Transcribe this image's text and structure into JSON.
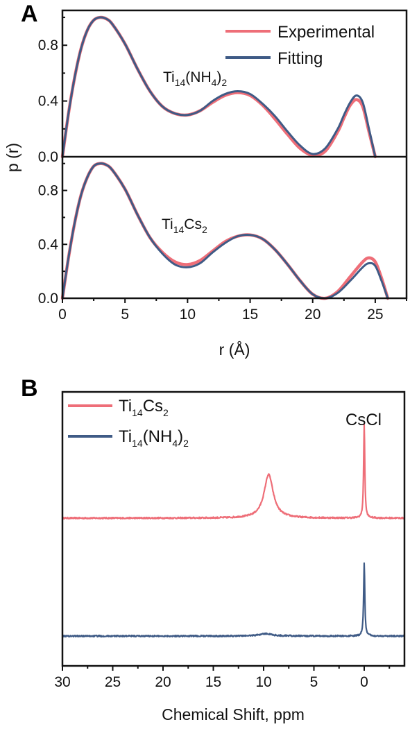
{
  "colors": {
    "experimental": "#ee6e78",
    "fitting": "#3f5b86",
    "axis": "#111111"
  },
  "chart_data": [
    {
      "panel": "A",
      "type": "line",
      "xlabel": "r (Å)",
      "ylabel": "p (r)",
      "xlim": [
        0,
        27.5
      ],
      "ylim": [
        0,
        1.05
      ],
      "xticks": [
        "0",
        "5",
        "10",
        "15",
        "20",
        "25"
      ],
      "yticks": [
        "0.0",
        "0.4",
        "0.8"
      ],
      "legend": {
        "placement": "top-right",
        "entries": [
          "Experimental",
          "Fitting"
        ]
      },
      "subplots": [
        {
          "annotation": {
            "base": "Ti",
            "sub1": "14",
            "mid": "(NH",
            "sub2": "4",
            "end": ")",
            "sub3": "2"
          },
          "x": [
            0,
            0.5,
            1,
            1.5,
            2,
            2.5,
            3,
            3.5,
            4,
            5,
            6,
            7,
            8,
            9,
            10,
            11,
            12,
            13,
            14,
            15,
            16,
            17,
            18,
            19,
            20,
            21,
            22,
            22.5,
            23,
            23.5,
            24,
            24.5,
            25
          ],
          "series": [
            {
              "name": "Experimental",
              "values": [
                0,
                0.32,
                0.58,
                0.78,
                0.91,
                0.98,
                1.0,
                0.99,
                0.95,
                0.81,
                0.63,
                0.47,
                0.36,
                0.31,
                0.3,
                0.33,
                0.39,
                0.44,
                0.46,
                0.44,
                0.37,
                0.27,
                0.16,
                0.06,
                0.01,
                0.04,
                0.18,
                0.28,
                0.37,
                0.41,
                0.36,
                0.18,
                0.0
              ]
            },
            {
              "name": "Fitting",
              "values": [
                0,
                0.32,
                0.58,
                0.78,
                0.91,
                0.98,
                1.0,
                0.99,
                0.95,
                0.81,
                0.63,
                0.47,
                0.36,
                0.31,
                0.3,
                0.33,
                0.4,
                0.45,
                0.47,
                0.45,
                0.38,
                0.29,
                0.18,
                0.08,
                0.02,
                0.06,
                0.2,
                0.3,
                0.39,
                0.44,
                0.39,
                0.2,
                0.0
              ]
            }
          ]
        },
        {
          "annotation": {
            "base": "Ti",
            "sub1": "14",
            "mid": "Cs",
            "sub2": "2",
            "end": "",
            "sub3": ""
          },
          "x": [
            0,
            0.5,
            1,
            1.5,
            2,
            2.5,
            3,
            3.5,
            4,
            5,
            6,
            7,
            8,
            9,
            10,
            11,
            12,
            13,
            14,
            15,
            16,
            17,
            18,
            19,
            20,
            21,
            22,
            23,
            24,
            24.5,
            25,
            25.5,
            26
          ],
          "series": [
            {
              "name": "Experimental",
              "values": [
                0,
                0.31,
                0.57,
                0.77,
                0.9,
                0.98,
                1.0,
                0.99,
                0.95,
                0.81,
                0.62,
                0.45,
                0.34,
                0.27,
                0.25,
                0.28,
                0.35,
                0.42,
                0.46,
                0.47,
                0.44,
                0.36,
                0.25,
                0.13,
                0.03,
                0.0,
                0.05,
                0.16,
                0.27,
                0.3,
                0.27,
                0.15,
                0.0
              ]
            },
            {
              "name": "Fitting",
              "values": [
                0,
                0.31,
                0.57,
                0.77,
                0.9,
                0.98,
                1.0,
                0.99,
                0.95,
                0.81,
                0.62,
                0.45,
                0.33,
                0.25,
                0.23,
                0.26,
                0.34,
                0.41,
                0.46,
                0.47,
                0.44,
                0.36,
                0.25,
                0.13,
                0.03,
                0.0,
                0.04,
                0.13,
                0.23,
                0.26,
                0.24,
                0.13,
                0.0
              ]
            }
          ]
        }
      ]
    },
    {
      "panel": "B",
      "type": "line",
      "xlabel": "Chemical Shift, ppm",
      "xlim": [
        30,
        -4
      ],
      "xticks": [
        "30",
        "25",
        "20",
        "15",
        "10",
        "5",
        "0"
      ],
      "annotation": "CsCl",
      "legend": {
        "placement": "top-left",
        "entries": [
          {
            "base": "Ti",
            "sub1": "14",
            "mid": "Cs",
            "sub2": "2",
            "end": "",
            "sub3": ""
          },
          {
            "base": "Ti",
            "sub1": "14",
            "mid": "(NH",
            "sub2": "4",
            "end": ")",
            "sub3": "2"
          }
        ]
      },
      "series": [
        {
          "name": "Ti14Cs2",
          "offset": 1.0,
          "peaks": [
            {
              "center": 9.5,
              "height": 0.37,
              "width": 0.55
            },
            {
              "center": 0.0,
              "height": 0.8,
              "width": 0.07
            }
          ]
        },
        {
          "name": "Ti14(NH4)2",
          "offset": 0.0,
          "peaks": [
            {
              "center": 9.8,
              "height": 0.02,
              "width": 0.8
            },
            {
              "center": 0.0,
              "height": 0.62,
              "width": 0.07
            }
          ]
        }
      ]
    }
  ]
}
